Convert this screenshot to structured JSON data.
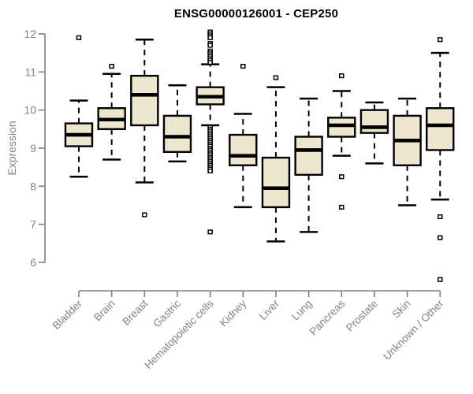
{
  "chart_data": {
    "type": "boxplot",
    "title": "ENSG00000126001 - CEP250",
    "ylabel": "Expression",
    "ylim": [
      6,
      12
    ],
    "yticks": [
      6,
      7,
      8,
      9,
      10,
      11,
      12
    ],
    "grid": false,
    "legend": null,
    "categories": [
      "Bladder",
      "Brain",
      "Breast",
      "Gastric",
      "Hematopoietic cells",
      "Kidney",
      "Liver",
      "Lung",
      "Pancreas",
      "Prostate",
      "Skin",
      "Unknown / Other"
    ],
    "series": [
      {
        "name": "Bladder",
        "low": 8.25,
        "q1": 9.05,
        "median": 9.35,
        "q3": 9.65,
        "high": 10.25,
        "outliers": [
          11.9
        ]
      },
      {
        "name": "Brain",
        "low": 8.7,
        "q1": 9.5,
        "median": 9.75,
        "q3": 10.05,
        "high": 10.95,
        "outliers": [
          11.15
        ]
      },
      {
        "name": "Breast",
        "low": 8.1,
        "q1": 9.6,
        "median": 10.4,
        "q3": 10.9,
        "high": 11.85,
        "outliers": [
          7.25
        ]
      },
      {
        "name": "Gastric",
        "low": 8.65,
        "q1": 8.9,
        "median": 9.3,
        "q3": 9.85,
        "high": 10.65,
        "outliers": []
      },
      {
        "name": "Hematopoietic cells",
        "low": 9.6,
        "q1": 10.15,
        "median": 10.35,
        "q3": 10.6,
        "high": 11.2,
        "outliers": [
          12.05,
          12.0,
          11.95,
          11.9,
          11.75,
          11.7,
          11.55,
          11.5,
          11.45,
          11.4,
          11.35,
          11.3,
          11.25,
          9.55,
          9.5,
          9.45,
          9.4,
          9.35,
          9.3,
          9.25,
          9.2,
          9.15,
          9.1,
          9.05,
          9.0,
          8.95,
          8.9,
          8.85,
          8.8,
          8.75,
          8.7,
          8.65,
          8.6,
          8.55,
          8.5,
          8.45,
          8.4,
          6.8
        ]
      },
      {
        "name": "Kidney",
        "low": 7.45,
        "q1": 8.55,
        "median": 8.8,
        "q3": 9.35,
        "high": 9.9,
        "outliers": [
          11.15
        ]
      },
      {
        "name": "Liver",
        "low": 6.55,
        "q1": 7.45,
        "median": 7.95,
        "q3": 8.75,
        "high": 10.6,
        "outliers": [
          10.85
        ]
      },
      {
        "name": "Lung",
        "low": 6.8,
        "q1": 8.3,
        "median": 8.95,
        "q3": 9.3,
        "high": 10.3,
        "outliers": []
      },
      {
        "name": "Pancreas",
        "low": 8.8,
        "q1": 9.3,
        "median": 9.6,
        "q3": 9.8,
        "high": 10.5,
        "outliers": [
          10.9,
          8.25,
          7.45
        ]
      },
      {
        "name": "Prostate",
        "low": 8.6,
        "q1": 9.4,
        "median": 9.55,
        "q3": 10.0,
        "high": 10.2,
        "outliers": []
      },
      {
        "name": "Skin",
        "low": 7.5,
        "q1": 8.55,
        "median": 9.2,
        "q3": 9.85,
        "high": 10.3,
        "outliers": []
      },
      {
        "name": "Unknown / Other",
        "low": 7.65,
        "q1": 8.95,
        "median": 9.6,
        "q3": 10.05,
        "high": 11.5,
        "outliers": [
          11.85,
          7.2,
          6.65,
          5.55
        ]
      }
    ]
  },
  "colors": {
    "box_fill": "#EDE7CF",
    "line": "#000000",
    "axis": "#7F7F7F",
    "tick_text": "#848484",
    "title_text": "#000000",
    "background": "#FFFFFF"
  }
}
